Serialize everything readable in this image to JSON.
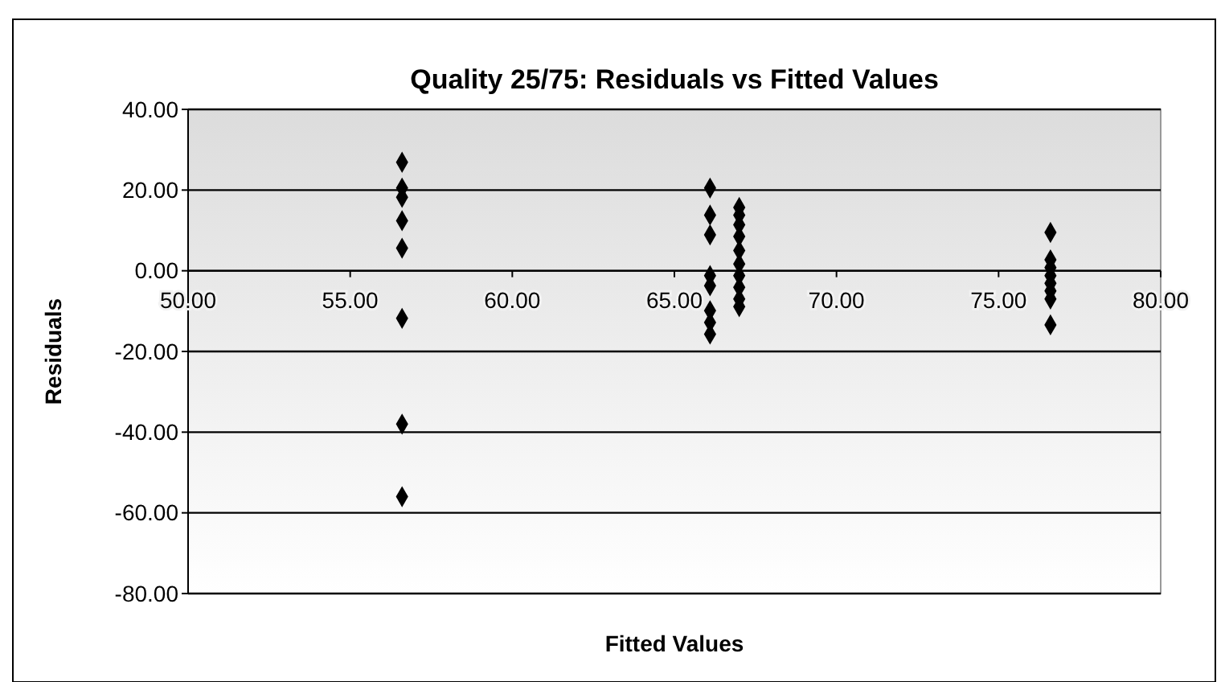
{
  "chart_data": {
    "type": "scatter",
    "title": "Quality 25/75: Residuals vs Fitted Values",
    "xlabel": "Fitted Values",
    "ylabel": "Residuals",
    "series": [
      {
        "color": "#000000",
        "x": [
          56.6,
          56.6,
          56.6,
          56.6,
          56.6,
          56.6,
          56.6,
          56.6,
          66.1,
          66.1,
          66.1,
          66.1,
          66.1,
          66.1,
          66.1,
          66.1,
          67,
          67,
          67,
          67,
          67,
          67,
          67,
          67,
          67,
          67,
          76.6,
          76.6,
          76.6,
          76.6,
          76.6,
          76.6,
          76.6,
          76.6
        ],
        "values": [
          26.9,
          20.5,
          18.2,
          12.4,
          5.6,
          -11.8,
          -38,
          -56,
          20.5,
          13.8,
          8.9,
          -1.2,
          -3.7,
          -9.9,
          -12.8,
          -15.7,
          15.7,
          13.8,
          11.4,
          8.5,
          5,
          1.7,
          -1.2,
          -4.1,
          -7,
          -8.9,
          9.5,
          2.7,
          0.8,
          -1.2,
          -3.1,
          -5,
          -7,
          -13.4
        ]
      }
    ],
    "xlim": [
      50,
      80
    ],
    "xticks": [
      {
        "value": 50,
        "label": "50.00"
      },
      {
        "value": 55,
        "label": "55.00"
      },
      {
        "value": 60,
        "label": "60.00"
      },
      {
        "value": 65,
        "label": "65.00"
      },
      {
        "value": 70,
        "label": "70.00"
      },
      {
        "value": 75,
        "label": "75.00"
      },
      {
        "value": 80,
        "label": "80.00"
      }
    ],
    "ylim": [
      -80,
      40
    ],
    "yticks": [
      {
        "value": -80,
        "label": "-80.00"
      },
      {
        "value": -60,
        "label": "-60.00"
      },
      {
        "value": -40,
        "label": "-40.00"
      },
      {
        "value": -20,
        "label": "-20.00"
      },
      {
        "value": 0,
        "label": "0.00"
      },
      {
        "value": 20,
        "label": "20.00"
      },
      {
        "value": 40,
        "label": "40.00"
      }
    ],
    "grid": "y",
    "marker": "diamond"
  }
}
